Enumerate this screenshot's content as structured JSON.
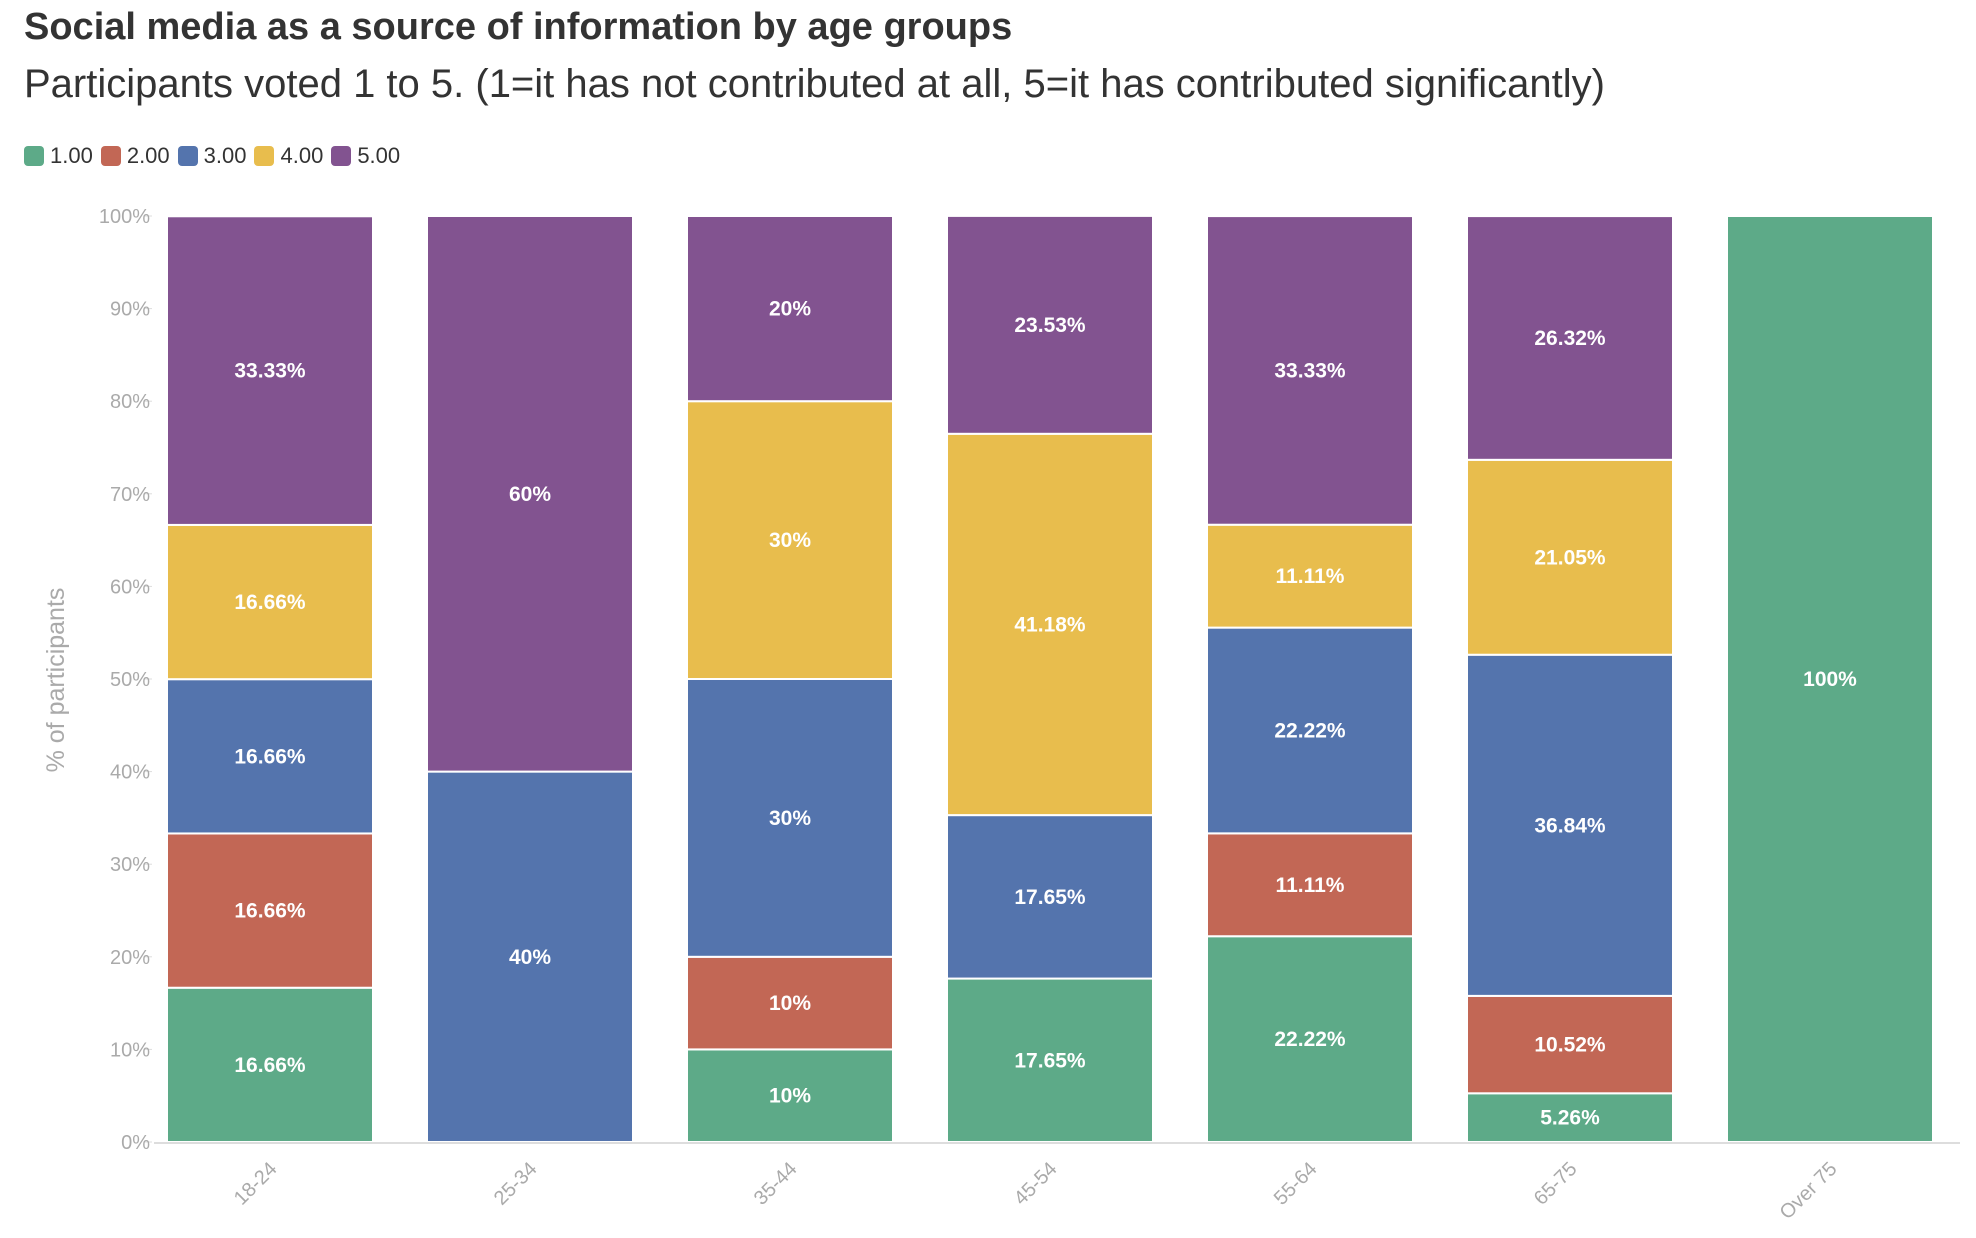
{
  "header": {
    "title": "Social media as a source of information by age groups",
    "subtitle": "Participants voted 1 to 5. (1=it has not contributed at all, 5=it has contributed significantly)"
  },
  "chart_data": {
    "type": "bar",
    "stacked": true,
    "title": "Social media as a source of information by age groups",
    "subtitle": "Participants voted 1 to 5. (1=it has not contributed at all, 5=it has contributed significantly)",
    "xlabel": "",
    "ylabel": "% of participants",
    "ylim": [
      0,
      100
    ],
    "y_ticks": [
      "0%",
      "10%",
      "20%",
      "30%",
      "40%",
      "50%",
      "60%",
      "70%",
      "80%",
      "90%",
      "100%"
    ],
    "categories": [
      "18-24",
      "25-34",
      "35-44",
      "45-54",
      "55-64",
      "65-75",
      "Over 75"
    ],
    "legend_position": "top-left",
    "series": [
      {
        "name": "1.00",
        "color": "#5daa88",
        "values": [
          16.66,
          0,
          10,
          17.65,
          22.22,
          5.26,
          100
        ],
        "labels": [
          "16.66%",
          "",
          "10%",
          "17.65%",
          "22.22%",
          "5.26%",
          "100%"
        ]
      },
      {
        "name": "2.00",
        "color": "#c26755",
        "values": [
          16.66,
          0,
          10,
          0,
          11.11,
          10.52,
          0
        ],
        "labels": [
          "16.66%",
          "",
          "10%",
          "",
          "11.11%",
          "10.52%",
          ""
        ]
      },
      {
        "name": "3.00",
        "color": "#5474ad",
        "values": [
          16.66,
          40,
          30,
          17.65,
          22.22,
          36.84,
          0
        ],
        "labels": [
          "16.66%",
          "40%",
          "30%",
          "17.65%",
          "22.22%",
          "36.84%",
          ""
        ]
      },
      {
        "name": "4.00",
        "color": "#e8bd4d",
        "values": [
          16.66,
          0,
          30,
          41.18,
          11.11,
          21.05,
          0
        ],
        "labels": [
          "16.66%",
          "",
          "30%",
          "41.18%",
          "11.11%",
          "21.05%",
          ""
        ]
      },
      {
        "name": "5.00",
        "color": "#825390",
        "values": [
          33.33,
          60,
          20,
          23.53,
          33.33,
          26.32,
          0
        ],
        "labels": [
          "33.33%",
          "60%",
          "20%",
          "23.53%",
          "33.33%",
          "26.32%",
          ""
        ]
      }
    ]
  }
}
